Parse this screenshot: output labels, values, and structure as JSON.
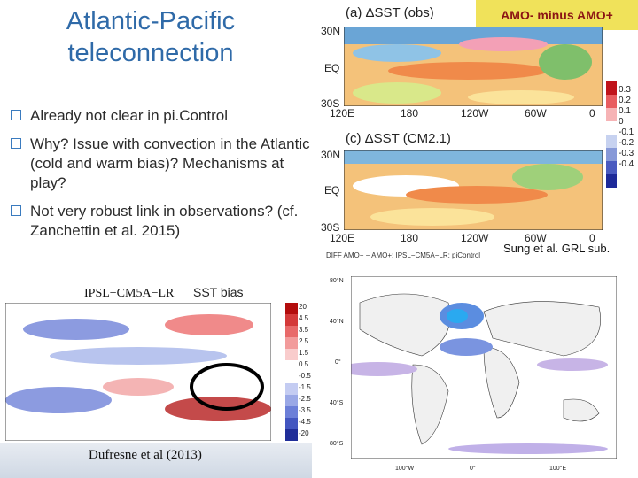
{
  "title": "Atlantic-Pacific teleconnection",
  "bullets": [
    "Already not clear in pi.Control",
    "Why? Issue with convection in the Atlantic (cold and warm bias)? Mechanisms at play?",
    "Not very robust link in observations? (cf. Zanchettin et al. 2015)"
  ],
  "amo_banner": "AMO- minus AMO+",
  "panel_a": {
    "label": "(a) ΔSST (obs)",
    "lat_labels": [
      "30N",
      "EQ",
      "30S"
    ],
    "lon_labels": [
      "120E",
      "180",
      "120W",
      "60W",
      "0"
    ]
  },
  "panel_c": {
    "label": "(c) ΔSST (CM2.1)",
    "lat_labels": [
      "30N",
      "EQ",
      "30S"
    ],
    "lon_labels": [
      "120E",
      "180",
      "120W",
      "60W",
      "0"
    ]
  },
  "colorbar_right": [
    "0.3",
    "0.2",
    "0.1",
    "0",
    "-0.1",
    "-0.2",
    "-0.3",
    "-0.4"
  ],
  "sung_cite": "Sung et al. GRL sub.",
  "ipsl": {
    "title": "IPSL−CM5A−LR",
    "subtitle": "SST bias",
    "colorbar": [
      "20",
      "4.5",
      "3.5",
      "2.5",
      "1.5",
      "0.5",
      "-0.5",
      "-1.5",
      "-2.5",
      "-3.5",
      "-4.5",
      "-20"
    ],
    "cite": "Dufresne et al (2013)"
  },
  "diff_map": {
    "label": "DIFF AMO− − AMO+; IPSL−CM5A−LR; piControl",
    "lat_labels": [
      "80°N",
      "40°N",
      "0°",
      "40°S",
      "80°S"
    ],
    "lon_labels": [
      "100°W",
      "0°",
      "100°E"
    ]
  },
  "colors": {
    "title": "#2f6aa8",
    "banner_bg": "#f0e25a",
    "banner_text": "#8b1414"
  }
}
